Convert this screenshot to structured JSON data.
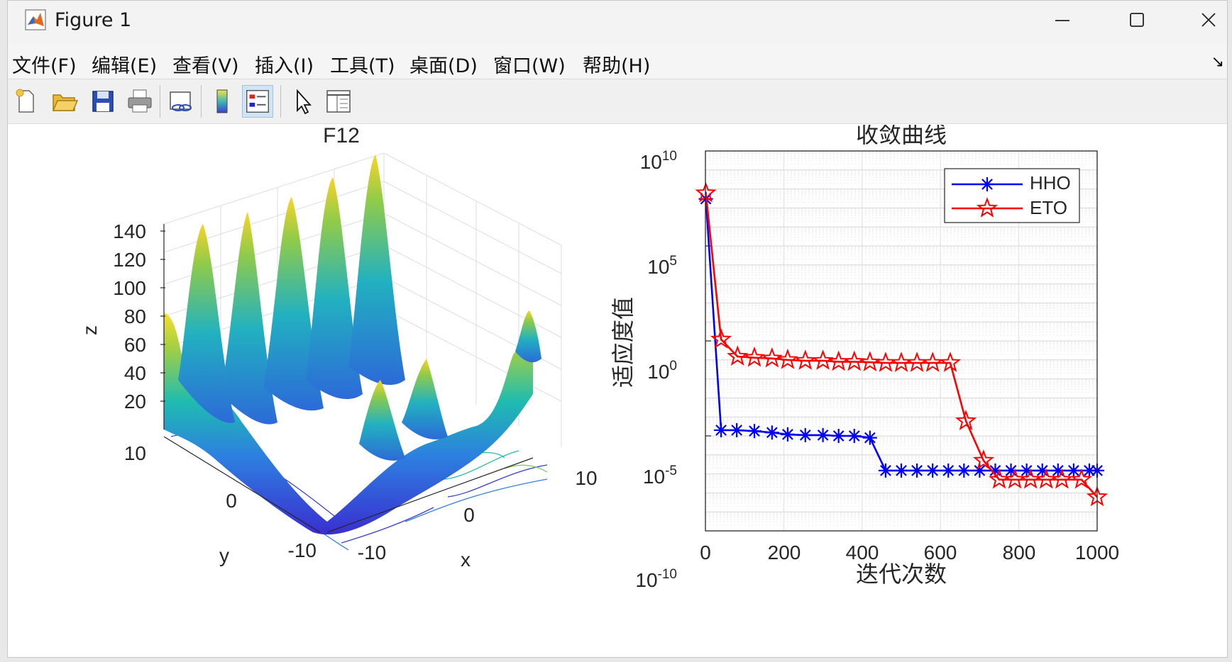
{
  "window": {
    "title": "Figure 1",
    "menu": [
      "文件(F)",
      "编辑(E)",
      "查看(V)",
      "插入(I)",
      "工具(T)",
      "桌面(D)",
      "窗口(W)",
      "帮助(H)"
    ],
    "toolbar_icons": [
      "new-figure-icon",
      "open-file-icon",
      "save-icon",
      "print-icon",
      "link-plot-icon",
      "colorbar-icon",
      "legend-icon",
      "pointer-icon",
      "property-inspector-icon"
    ]
  },
  "plot3d": {
    "title": "F12",
    "xlabel": "x",
    "ylabel": "y",
    "zlabel": "z",
    "z_ticks": [
      "140",
      "120",
      "100",
      "80",
      "60",
      "40",
      "20"
    ],
    "x_ticks": [
      "-10",
      "0",
      "10"
    ],
    "y_ticks": [
      "10",
      "0",
      "-10"
    ]
  },
  "chart_data": {
    "type": "line",
    "title": "收敛曲线",
    "xlabel": "迭代次数",
    "ylabel": "适应度值",
    "yscale": "log",
    "xlim": [
      0,
      1000
    ],
    "ylim": [
      1e-10,
      10000000000.0
    ],
    "x_ticks": [
      "0",
      "200",
      "400",
      "600",
      "800",
      "1000"
    ],
    "y_ticks": [
      {
        "base": "10",
        "exp": "10"
      },
      {
        "base": "10",
        "exp": "5"
      },
      {
        "base": "10",
        "exp": "0"
      },
      {
        "base": "10",
        "exp": "-5"
      },
      {
        "base": "10",
        "exp": "-10"
      }
    ],
    "grid": true,
    "legend_position": "top-right",
    "series": [
      {
        "name": "HHO",
        "color": "#0000ff",
        "marker": "asterisk",
        "points": [
          [
            1,
            30000000
          ],
          [
            40,
            2e-05
          ],
          [
            80,
            2e-05
          ],
          [
            125,
            1.8e-05
          ],
          [
            170,
            1.5e-05
          ],
          [
            210,
            1.2e-05
          ],
          [
            255,
            1.1e-05
          ],
          [
            300,
            1.1e-05
          ],
          [
            340,
            1e-05
          ],
          [
            380,
            1e-05
          ],
          [
            420,
            8e-06
          ],
          [
            460,
            1.5e-07
          ],
          [
            500,
            1.5e-07
          ],
          [
            540,
            1.5e-07
          ],
          [
            580,
            1.5e-07
          ],
          [
            620,
            1.5e-07
          ],
          [
            660,
            1.5e-07
          ],
          [
            700,
            1.5e-07
          ],
          [
            740,
            1.5e-07
          ],
          [
            780,
            1.5e-07
          ],
          [
            820,
            1.5e-07
          ],
          [
            860,
            1.5e-07
          ],
          [
            900,
            1.5e-07
          ],
          [
            940,
            1.5e-07
          ],
          [
            980,
            1.5e-07
          ],
          [
            1000,
            1.5e-07
          ]
        ]
      },
      {
        "name": "ETO",
        "color": "#ff0000",
        "marker": "pentagram",
        "points": [
          [
            1,
            60000000
          ],
          [
            40,
            1.2
          ],
          [
            82,
            0.15
          ],
          [
            125,
            0.13
          ],
          [
            170,
            0.12
          ],
          [
            210,
            0.1
          ],
          [
            255,
            0.09
          ],
          [
            300,
            0.09
          ],
          [
            340,
            0.08
          ],
          [
            380,
            0.08
          ],
          [
            420,
            0.075
          ],
          [
            460,
            0.07
          ],
          [
            500,
            0.07
          ],
          [
            540,
            0.07
          ],
          [
            580,
            0.07
          ],
          [
            625,
            0.07
          ],
          [
            665,
            6e-05
          ],
          [
            710,
            5e-07
          ],
          [
            750,
            5e-08
          ],
          [
            790,
            5e-08
          ],
          [
            830,
            5e-08
          ],
          [
            870,
            5e-08
          ],
          [
            910,
            5e-08
          ],
          [
            960,
            5e-08
          ],
          [
            1000,
            6e-09
          ]
        ]
      }
    ]
  }
}
